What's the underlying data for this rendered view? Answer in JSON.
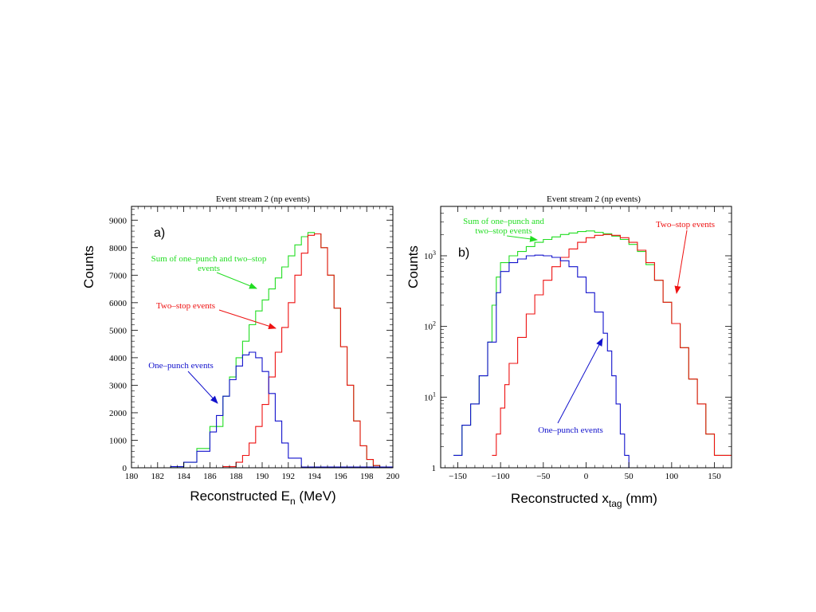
{
  "colors": {
    "sum": "#22dd22",
    "two_stop": "#ee1111",
    "one_punch": "#1111cc",
    "axes": "#000000"
  },
  "chart_data": [
    {
      "type": "line",
      "panel_label": "a)",
      "title": "Event stream 2 (np events)",
      "xlabel_main": "Reconstructed E",
      "xlabel_sub": "n",
      "xlabel_tail": " (MeV)",
      "ylabel": "Counts",
      "xlim": [
        180,
        200
      ],
      "ylim": [
        0,
        9500
      ],
      "yscale": "linear",
      "xticks": [
        180,
        182,
        184,
        186,
        188,
        190,
        192,
        194,
        196,
        198,
        200
      ],
      "xtick_labels": [
        "180",
        "182",
        "184",
        "186",
        "188",
        "190",
        "192",
        "194",
        "196",
        "198",
        "200"
      ],
      "yticks": [
        0,
        1000,
        2000,
        3000,
        4000,
        5000,
        6000,
        7000,
        8000,
        9000
      ],
      "ytick_labels": [
        "0",
        "1000",
        "2000",
        "3000",
        "4000",
        "5000",
        "6000",
        "7000",
        "8000",
        "9000"
      ],
      "step": "histogram",
      "series": [
        {
          "name": "Sum of one–punch and two–stop events",
          "color": "sum",
          "x": [
            180,
            181,
            182,
            183,
            184,
            185,
            186,
            187,
            187.5,
            188,
            188.5,
            189,
            189.5,
            190,
            190.5,
            191,
            191.5,
            192,
            192.5,
            193,
            193.5,
            194,
            194.5,
            195,
            195.5,
            196,
            196.5,
            197,
            197.5,
            198,
            198.5,
            199,
            200
          ],
          "y": [
            0,
            0,
            0,
            40,
            200,
            700,
            1500,
            2600,
            3300,
            4000,
            4600,
            5200,
            5700,
            6100,
            6500,
            6900,
            7300,
            7700,
            8100,
            8400,
            8550,
            8500,
            8000,
            7000,
            5800,
            4400,
            3000,
            1700,
            800,
            300,
            80,
            10,
            0
          ]
        },
        {
          "name": "Two–stop events",
          "color": "two_stop",
          "x": [
            180,
            186,
            187,
            188,
            188.5,
            189,
            189.5,
            190,
            190.5,
            191,
            191.5,
            192,
            192.5,
            193,
            193.5,
            194,
            194.5,
            195,
            195.5,
            196,
            196.5,
            197,
            197.5,
            198,
            198.5,
            199,
            200
          ],
          "y": [
            0,
            0,
            40,
            200,
            450,
            900,
            1500,
            2300,
            3300,
            4200,
            5100,
            6000,
            7000,
            7800,
            8450,
            8500,
            8000,
            7000,
            5800,
            4400,
            3000,
            1700,
            800,
            300,
            80,
            10,
            0
          ]
        },
        {
          "name": "One–punch events",
          "color": "one_punch",
          "x": [
            180,
            182,
            183,
            184,
            185,
            186,
            186.5,
            187,
            187.5,
            188,
            188.5,
            189,
            189.5,
            190,
            190.5,
            191,
            191.5,
            192,
            193,
            200
          ],
          "y": [
            0,
            0,
            40,
            200,
            600,
            1300,
            1900,
            2600,
            3200,
            3700,
            4100,
            4200,
            4000,
            3500,
            2700,
            1700,
            900,
            350,
            30,
            0
          ]
        }
      ],
      "annotations": [
        {
          "lines": [
            "Sum of one–punch and two–stop",
            "events"
          ],
          "color": "sum"
        },
        {
          "lines": [
            "Two–stop events"
          ],
          "color": "two_stop"
        },
        {
          "lines": [
            "One–punch events"
          ],
          "color": "one_punch"
        }
      ]
    },
    {
      "type": "line",
      "panel_label": "b)",
      "title": "Event stream 2 (np events)",
      "xlabel_main": "Reconstructed x",
      "xlabel_sub": "tag",
      "xlabel_tail": " (mm)",
      "ylabel": "Counts",
      "xlim": [
        -170,
        170
      ],
      "ylim": [
        1,
        5000
      ],
      "yscale": "log",
      "xticks": [
        -150,
        -100,
        -50,
        0,
        50,
        100,
        150
      ],
      "xtick_labels": [
        "−150",
        "−100",
        "−50",
        "0",
        "50",
        "100",
        "150"
      ],
      "yticks": [
        1,
        10,
        100,
        1000
      ],
      "ytick_base": [
        "1",
        "10",
        "10",
        "10"
      ],
      "ytick_exp": [
        "",
        "1",
        "2",
        "3"
      ],
      "step": "histogram",
      "series": [
        {
          "name": "Sum of one–punch and two–stop events",
          "color": "sum",
          "x": [
            -155,
            -145,
            -135,
            -125,
            -115,
            -110,
            -105,
            -100,
            -90,
            -80,
            -70,
            -60,
            -50,
            -40,
            -30,
            -20,
            -10,
            0,
            10,
            20,
            30,
            40,
            50,
            60,
            70,
            80,
            90,
            100,
            110,
            120,
            130,
            140,
            150
          ],
          "y": [
            1.5,
            4,
            8,
            20,
            60,
            200,
            500,
            800,
            1000,
            1150,
            1350,
            1550,
            1700,
            1850,
            2000,
            2100,
            2200,
            2250,
            2150,
            2050,
            1900,
            1700,
            1450,
            1150,
            750,
            450,
            220,
            110,
            50,
            18,
            8,
            3,
            1.5
          ]
        },
        {
          "name": "Two–stop events",
          "color": "two_stop",
          "x": [
            -110,
            -105,
            -100,
            -95,
            -90,
            -80,
            -70,
            -60,
            -50,
            -40,
            -30,
            -20,
            -10,
            0,
            10,
            20,
            30,
            40,
            50,
            60,
            70,
            80,
            90,
            100,
            110,
            120,
            130,
            140,
            150
          ],
          "y": [
            1.5,
            3,
            7,
            15,
            30,
            70,
            150,
            280,
            450,
            700,
            950,
            1250,
            1550,
            1800,
            1950,
            2000,
            1950,
            1800,
            1550,
            1200,
            800,
            450,
            220,
            110,
            50,
            18,
            8,
            3,
            1.5
          ]
        },
        {
          "name": "One–punch events",
          "color": "one_punch",
          "x": [
            -155,
            -145,
            -135,
            -125,
            -115,
            -105,
            -100,
            -90,
            -80,
            -70,
            -60,
            -50,
            -40,
            -30,
            -20,
            -10,
            0,
            10,
            20,
            25,
            30,
            35,
            40,
            45,
            50
          ],
          "y": [
            1.5,
            4,
            8,
            20,
            60,
            300,
            600,
            800,
            900,
            1000,
            1020,
            1000,
            950,
            850,
            700,
            500,
            300,
            160,
            80,
            45,
            20,
            8,
            3,
            1.5,
            1
          ]
        }
      ],
      "annotations": [
        {
          "lines": [
            "Sum of one–punch and",
            "two–stop events"
          ],
          "color": "sum"
        },
        {
          "lines": [
            "Two–stop events"
          ],
          "color": "two_stop"
        },
        {
          "lines": [
            "One–punch events"
          ],
          "color": "one_punch"
        }
      ]
    }
  ]
}
